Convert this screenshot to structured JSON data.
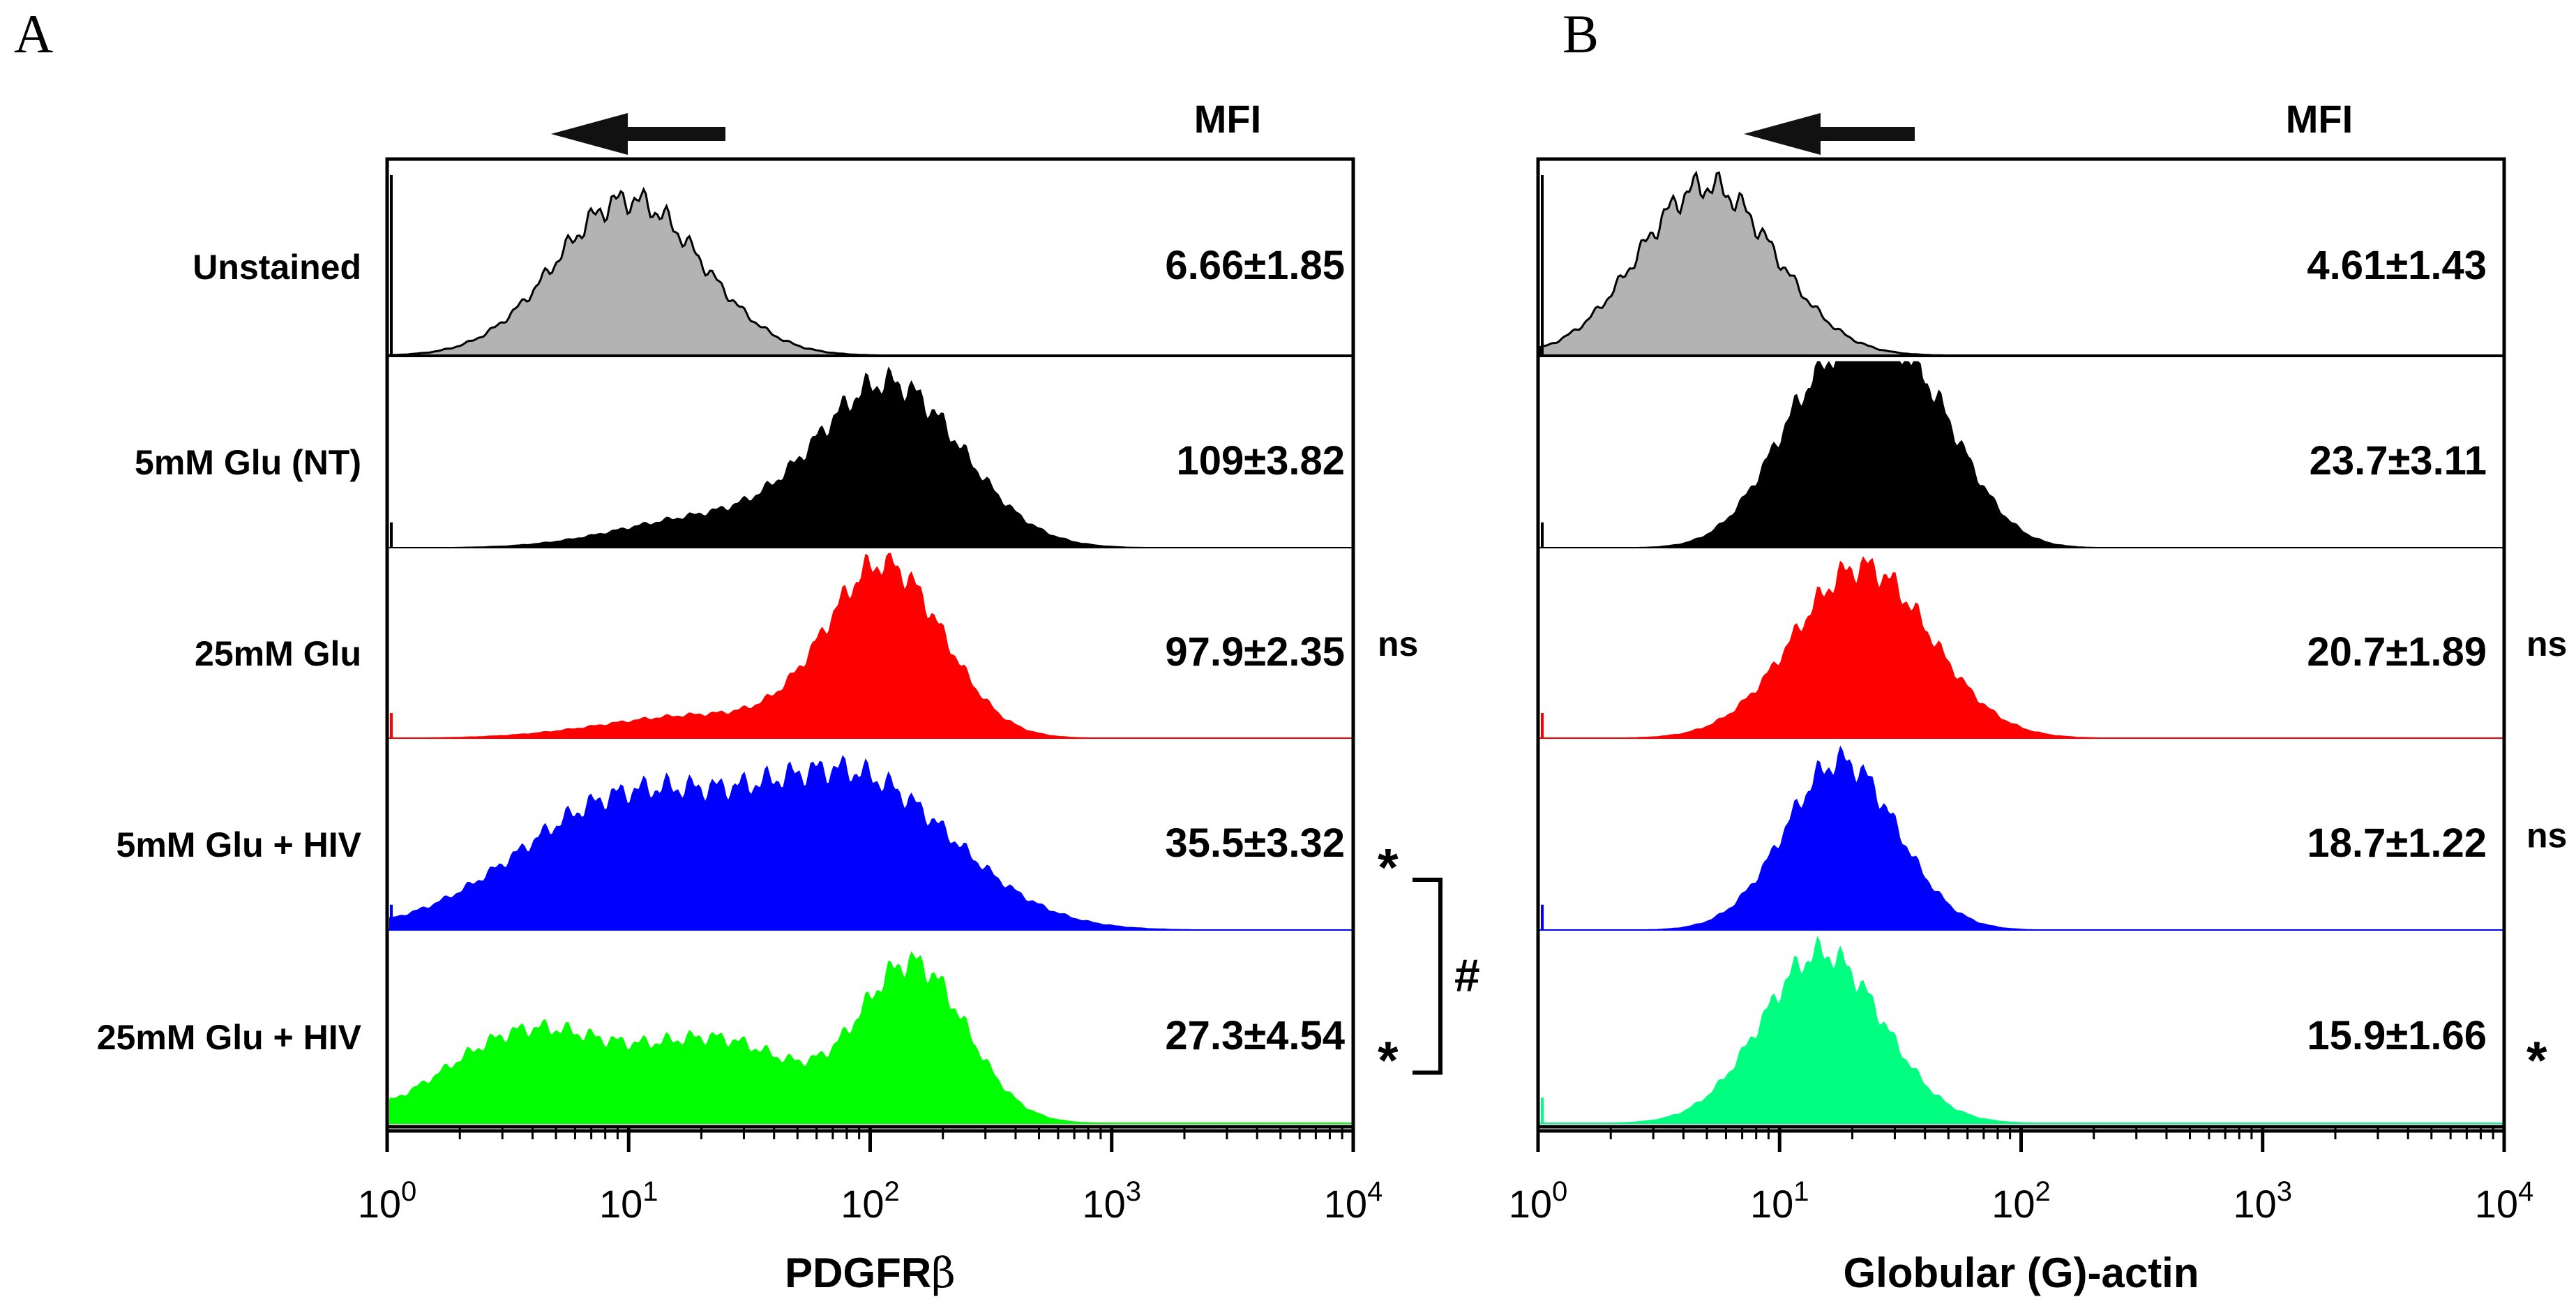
{
  "chart_data": [
    {
      "type": "histogram",
      "panel_label": "A",
      "xlabel_main": "PDGFR",
      "xlabel_greek": "β",
      "header": "MFI",
      "xscale": "log",
      "xlim": [
        1,
        10000
      ],
      "tick_exponents": [
        "0",
        "1",
        "2",
        "3",
        "4"
      ],
      "tick_base": "10",
      "arrow_direction": "left",
      "rows": [
        {
          "label": "Unstained",
          "mfi": "6.66±1.85",
          "sig": "",
          "color": "#b3b3b3",
          "peaks": [
            {
              "center": 10,
              "width": 0.3,
              "height": 0.78
            }
          ]
        },
        {
          "label": "5mM Glu (NT)",
          "mfi": "109±3.82",
          "sig": "",
          "color": "#000000",
          "peaks": [
            {
              "center": 120,
              "width": 0.3,
              "height": 0.85
            },
            {
              "center": 20,
              "width": 0.35,
              "height": 0.15
            }
          ]
        },
        {
          "label": "25mM Glu",
          "mfi": "97.9±2.35",
          "sig": "ns",
          "color": "#ff0000",
          "peaks": [
            {
              "center": 115,
              "width": 0.24,
              "height": 0.9
            },
            {
              "center": 20,
              "width": 0.4,
              "height": 0.12
            }
          ]
        },
        {
          "label": "5mM Glu + HIV",
          "mfi": "35.5±3.32",
          "sig": "*",
          "color": "#0000ff",
          "peaks": [
            {
              "center": 10,
              "width": 0.45,
              "height": 0.68
            },
            {
              "center": 90,
              "width": 0.4,
              "height": 0.75
            }
          ]
        },
        {
          "label": "25mM Glu + HIV",
          "mfi": "27.3±4.54",
          "sig": "*",
          "color": "#00ff00",
          "peaks": [
            {
              "center": 4,
              "width": 0.35,
              "height": 0.48
            },
            {
              "center": 25,
              "width": 0.3,
              "height": 0.4
            },
            {
              "center": 150,
              "width": 0.22,
              "height": 0.82
            }
          ]
        }
      ],
      "bracket": {
        "from_row": 3,
        "to_row": 4,
        "symbol": "#"
      }
    },
    {
      "type": "histogram",
      "panel_label": "B",
      "xlabel_main": "Globular (G)-actin",
      "xlabel_greek": "",
      "header": "MFI",
      "xscale": "log",
      "xlim": [
        1,
        10000
      ],
      "tick_exponents": [
        "0",
        "1",
        "2",
        "3",
        "4"
      ],
      "tick_base": "10",
      "arrow_direction": "left",
      "rows": [
        {
          "label": "",
          "mfi": "4.61±1.43",
          "sig": "",
          "color": "#b3b3b3",
          "peaks": [
            {
              "center": 5,
              "width": 0.28,
              "height": 0.85
            }
          ]
        },
        {
          "label": "",
          "mfi": "23.7±3.11",
          "sig": "",
          "color": "#000000",
          "peaks": [
            {
              "center": 15,
              "width": 0.22,
              "height": 0.75
            },
            {
              "center": 35,
              "width": 0.22,
              "height": 0.8
            }
          ]
        },
        {
          "label": "",
          "mfi": "20.7±1.89",
          "sig": "ns",
          "color": "#ff0000",
          "peaks": [
            {
              "center": 22,
              "width": 0.28,
              "height": 0.9
            }
          ]
        },
        {
          "label": "",
          "mfi": "18.7±1.22",
          "sig": "ns",
          "color": "#0000ff",
          "peaks": [
            {
              "center": 18,
              "width": 0.23,
              "height": 0.88
            }
          ]
        },
        {
          "label": "",
          "mfi": "15.9±1.66",
          "sig": "*",
          "color": "#00ff80",
          "peaks": [
            {
              "center": 15,
              "width": 0.25,
              "height": 0.88
            }
          ]
        }
      ],
      "bracket": null
    }
  ]
}
